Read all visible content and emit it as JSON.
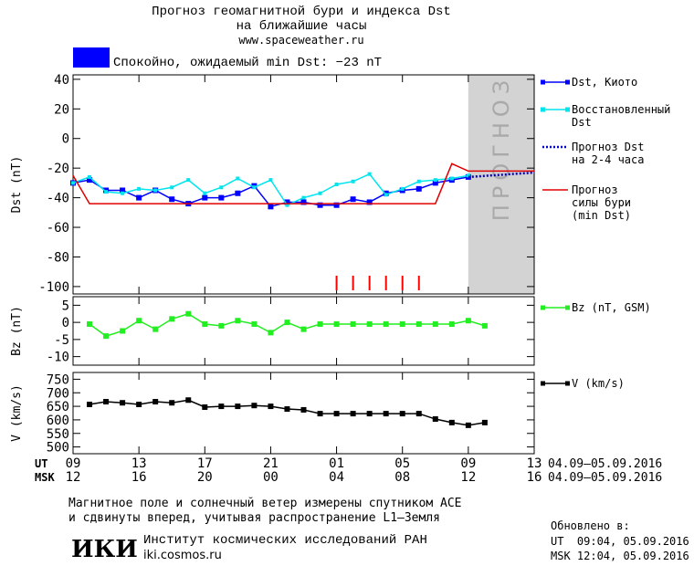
{
  "header": {
    "title": "Прогноз геомагнитной бури и индекса Dst",
    "subtitle": "на ближайшие часы",
    "site": "www.spaceweather.ru",
    "status": "Спокойно, ожидаемый min Dst: −23 nT",
    "status_color": "#0000ff"
  },
  "chart_data": [
    {
      "type": "line",
      "ylabel": "Dst (nT)",
      "ylim": [
        -105,
        43
      ],
      "yticks": [
        40,
        20,
        0,
        -20,
        -40,
        -60,
        -80,
        -100
      ],
      "forecast_region": [
        24,
        28
      ],
      "forecast_label": "ПРОГНОЗ",
      "forecast_color": "#d3d3d3",
      "storm_hours": [
        16,
        17,
        18,
        19,
        20,
        21
      ],
      "storm_color": "#ff0000",
      "series": [
        {
          "name": "Dst, Киото",
          "color": "#0000ff",
          "marker": "square",
          "x": [
            0,
            1,
            2,
            3,
            4,
            5,
            6,
            7,
            8,
            9,
            10,
            11,
            12,
            13,
            14,
            15,
            16,
            17,
            18,
            19,
            20,
            21,
            22,
            23,
            24
          ],
          "values": [
            -30,
            -28,
            -35,
            -35,
            -40,
            -35,
            -41,
            -44,
            -40,
            -40,
            -37,
            -32,
            -46,
            -43,
            -43,
            -45,
            -45,
            -41,
            -43,
            -37,
            -35,
            -34,
            -30,
            -28,
            -26
          ]
        },
        {
          "name": "Восстановленный\nDst",
          "color": "#00e5ee",
          "marker": "small-square",
          "x": [
            0,
            1,
            2,
            3,
            4,
            5,
            6,
            7,
            8,
            9,
            10,
            11,
            12,
            13,
            14,
            15,
            16,
            17,
            18,
            19,
            20,
            21,
            22,
            23,
            24
          ],
          "values": [
            -30,
            -26,
            -36,
            -37,
            -34,
            -35,
            -33,
            -28,
            -37,
            -33,
            -27,
            -33,
            -28,
            -45,
            -40,
            -37,
            -31,
            -29,
            -24,
            -38,
            -34,
            -29,
            -28,
            -27,
            -25
          ]
        },
        {
          "name": "Прогноз Dst\nна 2-4 часа",
          "color": "#0000cc",
          "dash": true,
          "x": [
            24,
            28
          ],
          "values": [
            -26,
            -23
          ]
        },
        {
          "name": "Прогноз\nсилы бури\n(min Dst)",
          "color": "#e00000",
          "x": [
            0,
            1,
            22,
            23,
            24,
            28
          ],
          "values": [
            -25,
            -44,
            -44,
            -17,
            -22,
            -22
          ]
        }
      ]
    },
    {
      "type": "line",
      "ylabel": "Bz (nT)",
      "ylim": [
        -12.5,
        7.5
      ],
      "yticks": [
        5,
        0,
        -5,
        -10
      ],
      "series": [
        {
          "name": "Bz (nT, GSM)",
          "color": "#22ee22",
          "marker": "square",
          "x": [
            1,
            2,
            3,
            4,
            5,
            6,
            7,
            8,
            9,
            10,
            11,
            12,
            13,
            14,
            15,
            16,
            17,
            18,
            19,
            20,
            21,
            22,
            23,
            24,
            25
          ],
          "values": [
            -0.5,
            -4,
            -2.5,
            0.5,
            -2,
            1,
            2.5,
            -0.5,
            -1,
            0.5,
            -0.5,
            -3,
            0,
            -2,
            -0.5,
            -0.5,
            -0.5,
            -0.5,
            -0.5,
            -0.5,
            -0.5,
            -0.5,
            -0.5,
            0.5,
            -1
          ]
        }
      ]
    },
    {
      "type": "line",
      "ylabel": "V (km/s)",
      "ylim": [
        475,
        775
      ],
      "yticks": [
        750,
        700,
        650,
        600,
        550,
        500
      ],
      "xlim": [
        0,
        28
      ],
      "xticks": [
        {
          "value": 0,
          "label": "09"
        },
        {
          "value": 4,
          "label": "13"
        },
        {
          "value": 8,
          "label": "17"
        },
        {
          "value": 12,
          "label": "21"
        },
        {
          "value": 16,
          "label": "01"
        },
        {
          "value": 20,
          "label": "05"
        },
        {
          "value": 24,
          "label": "09"
        },
        {
          "value": 28,
          "label": "13"
        }
      ],
      "x2ticks": [
        {
          "value": 0,
          "label": "12"
        },
        {
          "value": 4,
          "label": "16"
        },
        {
          "value": 8,
          "label": "20"
        },
        {
          "value": 12,
          "label": "00"
        },
        {
          "value": 16,
          "label": "04"
        },
        {
          "value": 20,
          "label": "08"
        },
        {
          "value": 24,
          "label": "12"
        },
        {
          "value": 28,
          "label": "16"
        }
      ],
      "xlabel": "UT",
      "x2label": "MSK",
      "x_date": "04.09–05.09.2016",
      "x2_date": "04.09–05.09.2016",
      "series": [
        {
          "name": "V (km/s)",
          "color": "#000000",
          "marker": "square",
          "x": [
            1,
            2,
            3,
            4,
            5,
            6,
            7,
            8,
            9,
            10,
            11,
            12,
            13,
            14,
            15,
            16,
            17,
            18,
            19,
            20,
            21,
            22,
            23,
            24,
            25
          ],
          "values": [
            657,
            667,
            663,
            657,
            667,
            663,
            673,
            647,
            650,
            650,
            653,
            650,
            640,
            637,
            623,
            623,
            623,
            623,
            623,
            623,
            623,
            603,
            590,
            580,
            590
          ]
        }
      ]
    }
  ],
  "footer": {
    "note": [
      "Магнитное поле и солнечный ветер измерены спутником ACE",
      "и сдвинуты вперед, учитывая распространение L1–Земля"
    ],
    "logo": "ИКИ",
    "institute": "Институт космических исследований РАН",
    "url": "iki.cosmos.ru",
    "updated": "Обновлено в:",
    "updated_ut": "UT  09:04, 05.09.2016",
    "updated_msk": "MSK 12:04, 05.09.2016"
  }
}
